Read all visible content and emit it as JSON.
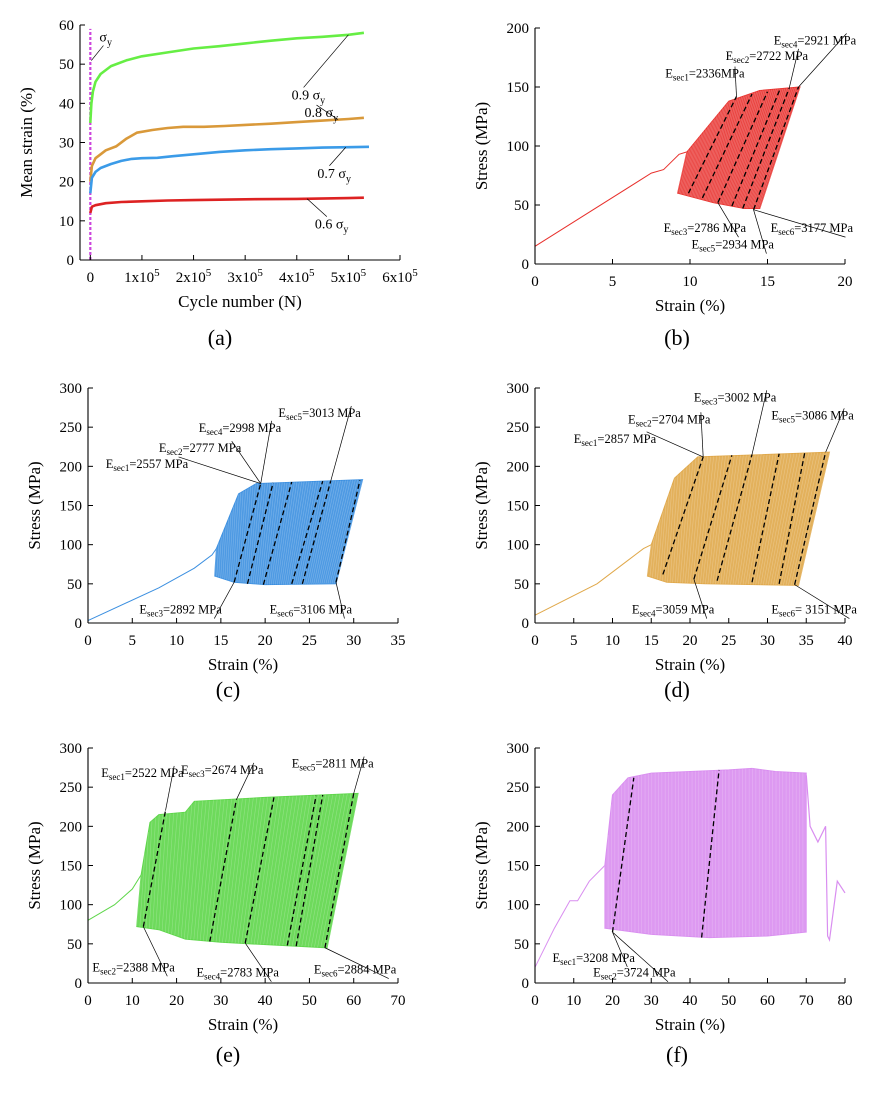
{
  "chart_data": [
    {
      "panel": "(a)",
      "type": "line",
      "xlabel": "Cycle number (N)",
      "ylabel": "Mean strain (%)",
      "xlim": [
        -20000,
        600000
      ],
      "ylim": [
        0,
        60
      ],
      "x_ticks": [
        0,
        100000,
        200000,
        300000,
        400000,
        500000,
        600000
      ],
      "x_tick_labels": [
        "0",
        "1x10^5",
        "2x10^5",
        "3x10^5",
        "4x10^5",
        "5x10^5",
        "6x10^5"
      ],
      "y_ticks": [
        0,
        10,
        20,
        30,
        40,
        50,
        60
      ],
      "annotations": [
        {
          "text": "σ_y",
          "x": 6000,
          "y": 55
        }
      ],
      "series": [
        {
          "name": "0.9 σ_y",
          "color": "#66ee44",
          "x": [
            0,
            2000,
            5000,
            10000,
            20000,
            40000,
            70000,
            100000,
            150000,
            200000,
            250000,
            300000,
            350000,
            400000,
            450000,
            500000,
            530000
          ],
          "y": [
            35,
            40,
            43,
            45.5,
            47.5,
            49.5,
            51,
            52,
            53,
            54,
            54.6,
            55.3,
            56,
            56.6,
            57,
            57.5,
            58
          ]
        },
        {
          "name": "0.8 σ_y",
          "color": "#d9993a",
          "x": [
            0,
            3000,
            10000,
            20000,
            30000,
            50000,
            70000,
            90000,
            120000,
            150000,
            180000,
            220000,
            260000,
            300000,
            350000,
            400000,
            450000,
            500000,
            530000
          ],
          "y": [
            20,
            24,
            26,
            27,
            28,
            29,
            31,
            32.5,
            33.2,
            33.7,
            34,
            34,
            34.2,
            34.5,
            34.8,
            35.2,
            35.6,
            36,
            36.3
          ]
        },
        {
          "name": "0.7 σ_y",
          "color": "#3b9be8",
          "x": [
            0,
            3000,
            10000,
            20000,
            40000,
            60000,
            80000,
            100000,
            130000,
            160000,
            200000,
            250000,
            300000,
            350000,
            400000,
            450000,
            500000,
            540000
          ],
          "y": [
            17,
            21,
            22.5,
            23.5,
            24.5,
            25.3,
            25.8,
            26,
            26.1,
            26.5,
            27,
            27.6,
            28,
            28.3,
            28.5,
            28.7,
            28.8,
            28.9
          ]
        },
        {
          "name": "0.6 σ_y",
          "color": "#dd2222",
          "x": [
            0,
            3000,
            10000,
            30000,
            60000,
            100000,
            150000,
            200000,
            300000,
            400000,
            500000,
            530000
          ],
          "y": [
            12,
            13.6,
            14,
            14.5,
            14.8,
            15,
            15.2,
            15.3,
            15.5,
            15.6,
            15.8,
            15.9
          ]
        }
      ],
      "sigma_marker_color": "#cc44dd"
    },
    {
      "panel": "(b)",
      "type": "line",
      "xlabel": "Strain (%)",
      "ylabel": "Stress (MPa)",
      "xlim": [
        0,
        20
      ],
      "ylim": [
        0,
        200
      ],
      "x_ticks": [
        0,
        5,
        10,
        15,
        20
      ],
      "y_ticks": [
        0,
        50,
        100,
        150,
        200
      ],
      "color": "#e8302c",
      "ramp": [
        [
          0,
          15
        ],
        [
          7.5,
          77
        ],
        [
          8.3,
          80
        ],
        [
          9.3,
          93
        ],
        [
          9.8,
          95
        ]
      ],
      "band_top": [
        [
          9.8,
          95
        ],
        [
          12.5,
          138
        ],
        [
          14.5,
          147
        ],
        [
          17.1,
          150
        ]
      ],
      "band_bottom": [
        [
          9.2,
          60
        ],
        [
          11.5,
          52
        ],
        [
          13.5,
          47
        ],
        [
          14.5,
          47
        ],
        [
          17.1,
          150
        ]
      ],
      "dashed": [
        [
          [
            9.9,
            60
          ],
          [
            13.0,
            142
          ]
        ],
        [
          [
            10.8,
            56
          ],
          [
            14.0,
            144
          ]
        ],
        [
          [
            11.8,
            52
          ],
          [
            15.0,
            146
          ]
        ],
        [
          [
            12.7,
            49
          ],
          [
            15.8,
            148
          ]
        ],
        [
          [
            13.4,
            47
          ],
          [
            16.4,
            149
          ]
        ],
        [
          [
            14.1,
            46
          ],
          [
            17.0,
            150
          ]
        ]
      ],
      "annotations": [
        {
          "text": "E",
          "sub": "sec1",
          "value": "=2336MPa",
          "x": 8.4,
          "y": 158
        },
        {
          "text": "E",
          "sub": "sec2",
          "value": "=2722 MPa",
          "x": 12.3,
          "y": 173
        },
        {
          "text": "E",
          "sub": "sec4",
          "value": "=2921 MPa",
          "x": 15.4,
          "y": 186
        },
        {
          "text": "E",
          "sub": "sec3",
          "value": "=2786 MPa",
          "x": 8.3,
          "y": 27
        },
        {
          "text": "E",
          "sub": "sec5",
          "value": "=2934 MPa",
          "x": 10.1,
          "y": 13
        },
        {
          "text": "E",
          "sub": "sec6",
          "value": "=3177 MPa",
          "x": 15.2,
          "y": 27
        }
      ]
    },
    {
      "panel": "(c)",
      "type": "line",
      "xlabel": "Strain (%)",
      "ylabel": "Stress (MPa)",
      "xlim": [
        0,
        35
      ],
      "ylim": [
        0,
        300
      ],
      "x_ticks": [
        0,
        5,
        10,
        15,
        20,
        25,
        30,
        35
      ],
      "y_ticks": [
        0,
        50,
        100,
        150,
        200,
        250,
        300
      ],
      "color": "#3b8fe0",
      "ramp": [
        [
          0,
          3
        ],
        [
          8,
          45
        ],
        [
          12,
          70
        ],
        [
          14,
          87
        ],
        [
          14.5,
          95
        ]
      ],
      "band_top": [
        [
          14.5,
          95
        ],
        [
          17,
          165
        ],
        [
          19,
          178
        ],
        [
          31,
          183
        ]
      ],
      "band_bottom": [
        [
          14.3,
          60
        ],
        [
          16.5,
          52
        ],
        [
          20,
          49
        ],
        [
          28,
          50
        ],
        [
          31,
          183
        ]
      ],
      "dashed": [
        [
          [
            16.5,
            52
          ],
          [
            19.5,
            178
          ]
        ],
        [
          [
            18.0,
            50
          ],
          [
            20.9,
            179
          ]
        ],
        [
          [
            19.8,
            49
          ],
          [
            23.0,
            180
          ]
        ],
        [
          [
            23.0,
            50
          ],
          [
            26.5,
            181
          ]
        ],
        [
          [
            24.2,
            50
          ],
          [
            27.4,
            181
          ]
        ],
        [
          [
            28.0,
            52
          ],
          [
            30.7,
            182
          ]
        ]
      ],
      "annotations": [
        {
          "text": "E",
          "sub": "sec1",
          "value": "=2557 MPa",
          "x": 2,
          "y": 198
        },
        {
          "text": "E",
          "sub": "sec2",
          "value": "=2777 MPa",
          "x": 8,
          "y": 218
        },
        {
          "text": "E",
          "sub": "sec4",
          "value": "=2998 MPa",
          "x": 12.5,
          "y": 244
        },
        {
          "text": "E",
          "sub": "sec5",
          "value": "=3013 MPa",
          "x": 21.5,
          "y": 263
        },
        {
          "text": "E",
          "sub": "sec3",
          "value": "=2892 MPa",
          "x": 5.8,
          "y": 12
        },
        {
          "text": "E",
          "sub": "sec6",
          "value": "=3106 MPa",
          "x": 20.5,
          "y": 12
        }
      ]
    },
    {
      "panel": "(d)",
      "type": "line",
      "xlabel": "Strain (%)",
      "ylabel": "Stress (MPa)",
      "xlim": [
        0,
        40
      ],
      "ylim": [
        0,
        300
      ],
      "x_ticks": [
        0,
        5,
        10,
        15,
        20,
        25,
        30,
        35,
        40
      ],
      "y_ticks": [
        0,
        50,
        100,
        150,
        200,
        250,
        300
      ],
      "color": "#e0a84a",
      "ramp": [
        [
          0,
          10
        ],
        [
          8,
          50
        ],
        [
          12,
          80
        ],
        [
          14,
          95
        ],
        [
          15,
          100
        ]
      ],
      "band_top": [
        [
          15,
          100
        ],
        [
          18,
          185
        ],
        [
          21,
          212
        ],
        [
          38,
          218
        ]
      ],
      "band_bottom": [
        [
          14.5,
          60
        ],
        [
          17,
          52
        ],
        [
          22,
          50
        ],
        [
          34,
          48
        ],
        [
          38,
          218
        ]
      ],
      "dashed": [
        [
          [
            16.5,
            62
          ],
          [
            21.7,
            212
          ]
        ],
        [
          [
            20.5,
            56
          ],
          [
            25.4,
            214
          ]
        ],
        [
          [
            23.5,
            54
          ],
          [
            28.0,
            215
          ]
        ],
        [
          [
            28.0,
            52
          ],
          [
            31.5,
            216
          ]
        ],
        [
          [
            31.5,
            50
          ],
          [
            34.8,
            217
          ]
        ],
        [
          [
            33.5,
            49
          ],
          [
            37.5,
            218
          ]
        ]
      ],
      "annotations": [
        {
          "text": "E",
          "sub": "sec1",
          "value": "=2857 MPa",
          "x": 5,
          "y": 230
        },
        {
          "text": "E",
          "sub": "sec2",
          "value": "=2704 MPa",
          "x": 12,
          "y": 255
        },
        {
          "text": "E",
          "sub": "sec3",
          "value": "=3002 MPa",
          "x": 20.5,
          "y": 283
        },
        {
          "text": "E",
          "sub": "sec5",
          "value": "=3086 MPa",
          "x": 30.5,
          "y": 260
        },
        {
          "text": "E",
          "sub": "sec4",
          "value": "=3059 MPa",
          "x": 12.5,
          "y": 12
        },
        {
          "text": "E",
          "sub": "sec6",
          "value": "= 3151 MPa",
          "x": 30.5,
          "y": 12
        }
      ]
    },
    {
      "panel": "(e)",
      "type": "line",
      "xlabel": "Strain (%)",
      "ylabel": "Stress (MPa)",
      "xlim": [
        0,
        70
      ],
      "ylim": [
        0,
        300
      ],
      "x_ticks": [
        0,
        10,
        20,
        30,
        40,
        50,
        60,
        70
      ],
      "y_ticks": [
        0,
        50,
        100,
        150,
        200,
        250,
        300
      ],
      "color": "#5ed64a",
      "ramp": [
        [
          0,
          80
        ],
        [
          6,
          100
        ],
        [
          10,
          120
        ],
        [
          12,
          138
        ]
      ],
      "band_top": [
        [
          12,
          138
        ],
        [
          14,
          205
        ],
        [
          16,
          215
        ],
        [
          22,
          218
        ],
        [
          24,
          232
        ],
        [
          40,
          237
        ],
        [
          61,
          242
        ]
      ],
      "band_bottom": [
        [
          11,
          72
        ],
        [
          16,
          68
        ],
        [
          22,
          56
        ],
        [
          30,
          52
        ],
        [
          54,
          45
        ],
        [
          61,
          242
        ]
      ],
      "dashed": [
        [
          [
            12.5,
            72
          ],
          [
            17.5,
            220
          ]
        ],
        [
          [
            27.5,
            53
          ],
          [
            33.5,
            234
          ]
        ],
        [
          [
            35.5,
            51
          ],
          [
            42.0,
            237
          ]
        ],
        [
          [
            45.0,
            48
          ],
          [
            51.5,
            239
          ]
        ],
        [
          [
            47.0,
            47
          ],
          [
            53.0,
            240
          ]
        ],
        [
          [
            53.5,
            45
          ],
          [
            60.0,
            242
          ]
        ]
      ],
      "annotations": [
        {
          "text": "E",
          "sub": "sec1",
          "value": "=2522 MPa",
          "x": 3,
          "y": 263
        },
        {
          "text": "E",
          "sub": "sec3",
          "value": "=2674 MPa",
          "x": 21,
          "y": 267
        },
        {
          "text": "E",
          "sub": "sec5",
          "value": "=2811 MPa",
          "x": 46,
          "y": 275
        },
        {
          "text": "E",
          "sub": "sec2",
          "value": "=2388 MPa",
          "x": 1,
          "y": 15
        },
        {
          "text": "E",
          "sub": "sec4",
          "value": "=2783 MPa",
          "x": 24.5,
          "y": 8
        },
        {
          "text": "E",
          "sub": "sec6",
          "value": "=2884 MPa",
          "x": 51,
          "y": 12
        }
      ]
    },
    {
      "panel": "(f)",
      "type": "line",
      "xlabel": "Strain (%)",
      "ylabel": "Stress (MPa)",
      "xlim": [
        0,
        80
      ],
      "ylim": [
        0,
        300
      ],
      "x_ticks": [
        0,
        10,
        20,
        30,
        40,
        50,
        60,
        70,
        80
      ],
      "y_ticks": [
        0,
        50,
        100,
        150,
        200,
        250,
        300
      ],
      "color": "#d98ef0",
      "ramp": [
        [
          0,
          20
        ],
        [
          5,
          70
        ],
        [
          9,
          105
        ],
        [
          11,
          105
        ],
        [
          14,
          130
        ],
        [
          18,
          150
        ]
      ],
      "band_top": [
        [
          18,
          150
        ],
        [
          20,
          240
        ],
        [
          24,
          262
        ],
        [
          30,
          268
        ],
        [
          50,
          272
        ],
        [
          56,
          274
        ],
        [
          62,
          270
        ],
        [
          70,
          268
        ]
      ],
      "band_bottom": [
        [
          18,
          70
        ],
        [
          30,
          62
        ],
        [
          45,
          58
        ],
        [
          60,
          60
        ],
        [
          70,
          65
        ],
        [
          70,
          268
        ]
      ],
      "extra_cycles": [
        [
          [
            70,
            265
          ],
          [
            71,
            200
          ],
          [
            73,
            180
          ],
          [
            75,
            200
          ],
          [
            75.5,
            60
          ],
          [
            76,
            55
          ],
          [
            78,
            130
          ],
          [
            80,
            115
          ]
        ]
      ],
      "dashed": [
        [
          [
            20.0,
            65
          ],
          [
            25.5,
            262
          ]
        ],
        [
          [
            43.0,
            58
          ],
          [
            47.5,
            272
          ]
        ]
      ],
      "annotations": [
        {
          "text": "E",
          "sub": "sec1",
          "value": "=3208 MPa",
          "x": 4.5,
          "y": 27
        },
        {
          "text": "E",
          "sub": "sec2",
          "value": "=3724 MPa",
          "x": 15,
          "y": 8
        }
      ]
    }
  ]
}
